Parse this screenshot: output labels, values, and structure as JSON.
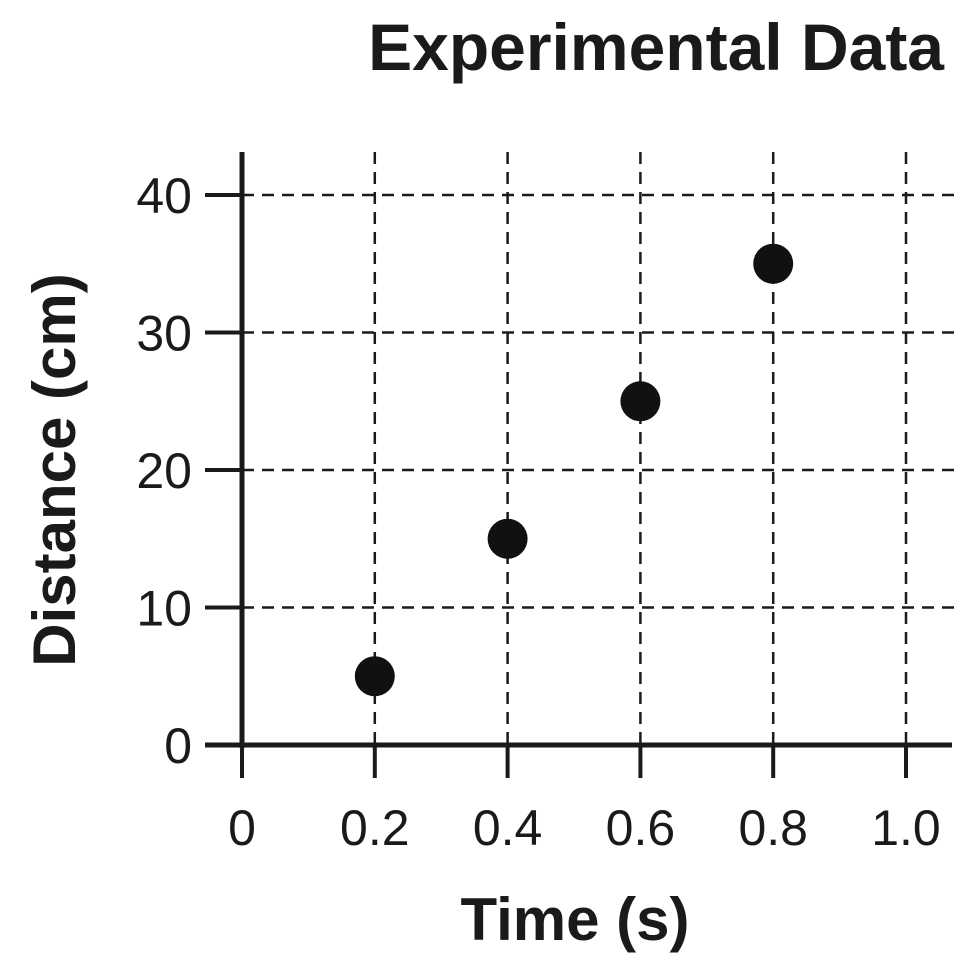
{
  "chart_data": {
    "type": "scatter",
    "title": "Experimental Data",
    "xlabel": "Time (s)",
    "ylabel": "Distance (cm)",
    "xlim": [
      0,
      1.0
    ],
    "ylim": [
      0,
      40
    ],
    "xticks": [
      0,
      0.2,
      0.4,
      0.6,
      0.8,
      1.0
    ],
    "xtick_labels": [
      "0",
      "0.2",
      "0.4",
      "0.6",
      "0.8",
      "1.0"
    ],
    "yticks": [
      0,
      10,
      20,
      30,
      40
    ],
    "ytick_labels": [
      "0",
      "10",
      "20",
      "30",
      "40"
    ],
    "grid": true,
    "grid_style": "dashed",
    "point_color": "#111111",
    "series": [
      {
        "x": [
          0.2,
          0.4,
          0.6,
          0.8
        ],
        "y": [
          5,
          15,
          25,
          35
        ]
      }
    ]
  }
}
